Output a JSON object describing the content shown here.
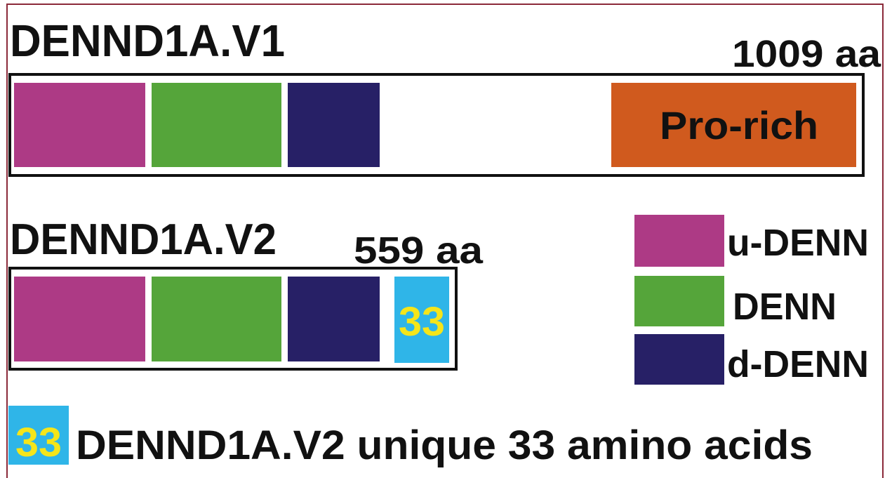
{
  "v1": {
    "title": "DENND1A.V1",
    "length": "1009 aa",
    "domain": "Pro-rich"
  },
  "v2": {
    "title": "DENND1A.V2",
    "length": "559 aa",
    "unique": "33"
  },
  "legend": [
    {
      "label": "u-DENN"
    },
    {
      "label": "DENN"
    },
    {
      "label": "d-DENN"
    }
  ],
  "footnote": {
    "badge": "33",
    "text": "DENND1A.V2 unique 33 amino acids"
  }
}
